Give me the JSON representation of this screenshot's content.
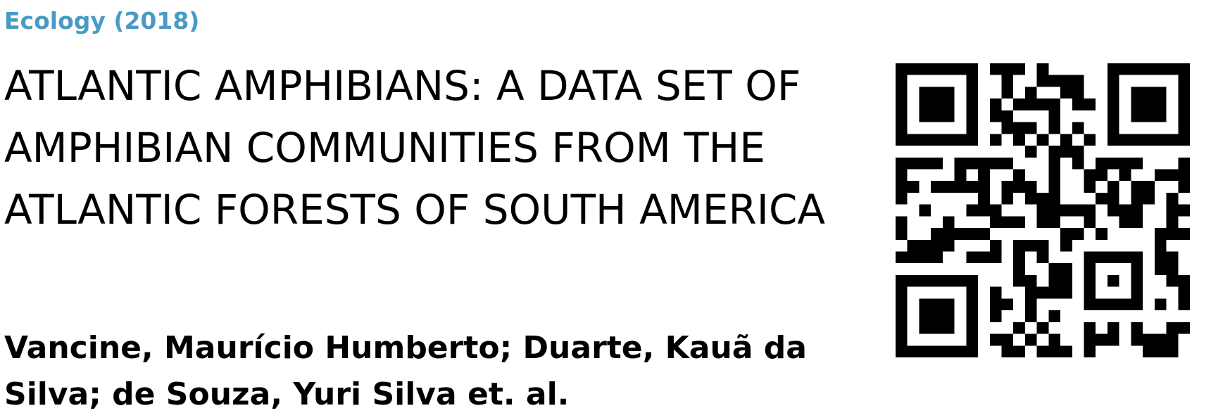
{
  "journal": {
    "label": "Ecology (2018)",
    "color": "#4a9bc4"
  },
  "title": "ATLANTIC AMPHIBIANS: A DATA SET OF AMPHIBIAN COMMUNITIES FROM THE ATLANTIC FORESTS OF SOUTH AMERICA",
  "authors": "Vancine, Maurício Humberto; Duarte, Kauã da Silva; de Souza, Yuri Silva et. al.",
  "qr_code": {
    "icon": "qr-code-icon",
    "color": "#000000"
  }
}
